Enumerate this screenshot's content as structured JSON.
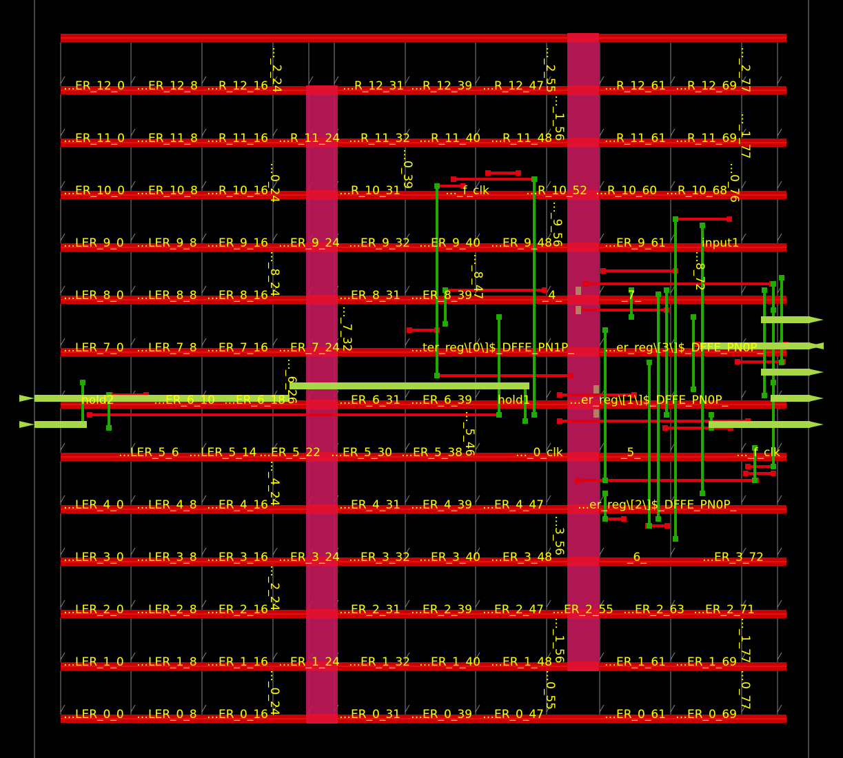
{
  "colors": {
    "background": "#000000",
    "power_rail": "#cc0000",
    "power_rail_highlight": "#e01030",
    "power_strap": "#c2185b",
    "route_metal_red": "#e00010",
    "route_metal_green": "#22aa00",
    "io_pin": "#a8d848",
    "instance_label": "#ffff00",
    "site_outline": "#bbbbbb"
  },
  "rows": [
    {
      "cells": [
        "…ER_12_0",
        "…ER_12_8",
        "…R_12_16",
        "…R_12_31",
        "…R_12_39",
        "…R_12_47",
        "…R_12_61",
        "…R_12_69"
      ]
    },
    {
      "cells": [
        "…ER_11_0",
        "…ER_11_8",
        "…R_11_16",
        "…R_11_24",
        "…R_11_32",
        "…R_11_40",
        "…R_11_48",
        "…R_11_61",
        "…R_11_69"
      ]
    },
    {
      "cells": [
        "…ER_10_0",
        "…ER_10_8",
        "…R_10_16",
        "…R_10_31",
        "…_f_clk",
        "…R_10_52",
        "…R_10_60",
        "…R_10_68"
      ]
    },
    {
      "cells": [
        "…LER_9_0",
        "…LER_9_8",
        "…ER_9_16",
        "…ER_9_24",
        "…ER_9_32",
        "…ER_9_40",
        "…ER_9_48",
        "…ER_9_61",
        "input1"
      ]
    },
    {
      "cells": [
        "…LER_8_0",
        "…LER_8_8",
        "…ER_8_16",
        "…ER_8_31",
        "…ER_8_39",
        "_4_",
        "_7_"
      ]
    },
    {
      "cells": [
        "…LER_7_0",
        "…LER_7_8",
        "…ER_7_16",
        "…ER_7_24",
        "…ter_reg\\[0\\]$_DFFE_PN1P_",
        "…er_reg\\[3\\]$_DFFE_PN0P_"
      ]
    },
    {
      "cells": [
        "hold2",
        "…ER_6_10",
        "…ER_6_18",
        "…ER_6_31",
        "…ER_6_39",
        "hold1",
        "…er_reg\\[1\\]$_DFFE_PN0P_"
      ]
    },
    {
      "cells": [
        "…LER_5_6",
        "…LER_5_14",
        "…ER_5_22",
        "…ER_5_30",
        "…ER_5_38",
        "…_0_clk",
        "_5_",
        "…_f_clk"
      ]
    },
    {
      "cells": [
        "…LER_4_0",
        "…LER_4_8",
        "…ER_4_16",
        "…ER_4_31",
        "…ER_4_39",
        "…ER_4_47",
        "…er_reg\\[2\\]$_DFFE_PN0P_"
      ]
    },
    {
      "cells": [
        "…LER_3_0",
        "…LER_3_8",
        "…ER_3_16",
        "…ER_3_24",
        "…ER_3_32",
        "…ER_3_40",
        "…ER_3_48",
        "_6_",
        "…ER_3_72"
      ]
    },
    {
      "cells": [
        "…LER_2_0",
        "…LER_2_8",
        "…ER_2_16",
        "…ER_2_31",
        "…ER_2_39",
        "…ER_2_47",
        "…ER_2_55",
        "…ER_2_63",
        "…ER_2_71"
      ]
    },
    {
      "cells": [
        "…LER_1_0",
        "…LER_1_8",
        "…ER_1_16",
        "…ER_1_24",
        "…ER_1_32",
        "…ER_1_40",
        "…ER_1_48",
        "…ER_1_61",
        "…ER_1_69"
      ]
    },
    {
      "cells": [
        "…LER_0_0",
        "…LER_0_8",
        "…ER_0_16",
        "…ER_0_31",
        "…ER_0_39",
        "…ER_0_47",
        "…ER_0_61",
        "…ER_0_69"
      ]
    }
  ],
  "vertical_labels": [
    "…_2_24",
    "…_2_55",
    "…_2_77",
    "…_1_56",
    "…_1_77",
    "…0_24",
    "…0_39",
    "…0_76",
    "…_9_56",
    "…_8_24",
    "…_8_47",
    "…8_72",
    "…_7_32",
    "…_6_26",
    "…_5_46",
    "…_4_24",
    "…3_56",
    "…_2_24",
    "…_1_77",
    "…_1_56",
    "…_0_24",
    "…0_55",
    "…0_77"
  ]
}
